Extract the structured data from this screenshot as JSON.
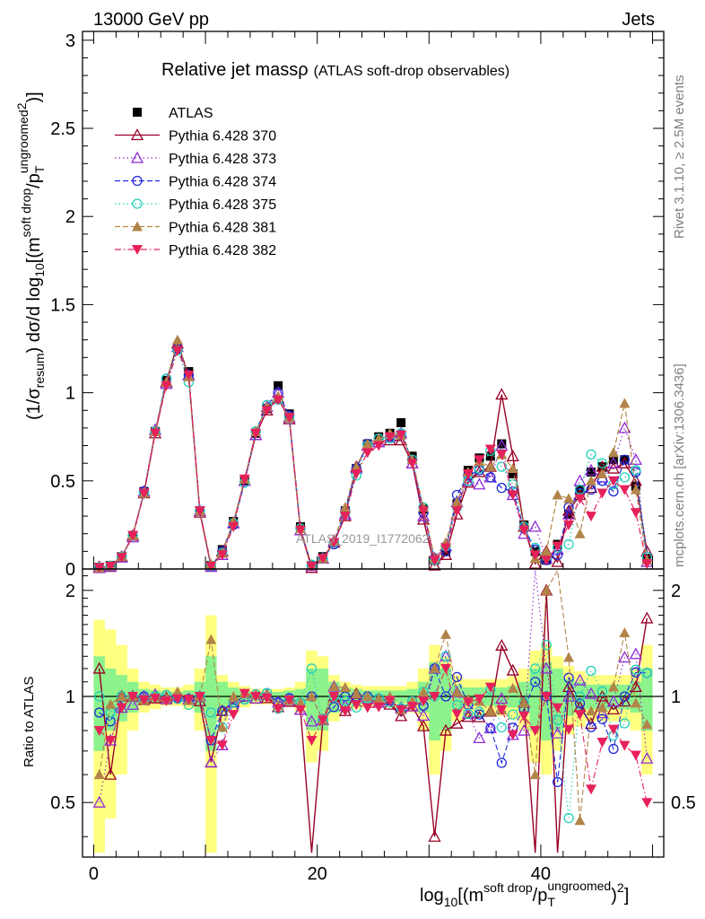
{
  "header": {
    "beam": "13000 GeV pp",
    "process": "Jets",
    "rivet": "Rivet 3.1.10, ≥ 2.5M events",
    "source": "mcplots.cern.ch [arXiv:1306.3436]",
    "watermark": "ATLAS_2019_I1772062"
  },
  "chart_data": [
    {
      "type": "line",
      "panel": "main",
      "title": "Relative jet massρ",
      "subtitle": "(ATLAS soft-drop observables)",
      "ylabel": "(1/σresum) dσ/d log10[(m soft drop / pT ungroomed)2]",
      "xlabel": "log10[(m soft drop / pT ungroomed)2]",
      "xlim": [
        -1,
        51
      ],
      "ylim": [
        0,
        3.05
      ],
      "xticks": [
        "0",
        "20",
        "40"
      ],
      "yticks": [
        "0",
        "0.5",
        "1",
        "1.5",
        "2",
        "2.5",
        "3"
      ],
      "x": [
        0.5,
        1.5,
        2.5,
        3.5,
        4.5,
        5.5,
        6.5,
        7.5,
        8.5,
        9.5,
        10.5,
        11.5,
        12.5,
        13.5,
        14.5,
        15.5,
        16.5,
        17.5,
        18.5,
        19.5,
        20.5,
        21.5,
        22.5,
        23.5,
        24.5,
        25.5,
        26.5,
        27.5,
        28.5,
        29.5,
        30.5,
        31.5,
        32.5,
        33.5,
        34.5,
        35.5,
        36.5,
        37.5,
        38.5,
        39.5,
        40.5,
        41.5,
        42.5,
        43.5,
        44.5,
        45.5,
        46.5,
        47.5,
        48.5,
        49.5
      ],
      "series": [
        {
          "name": "ATLAS",
          "color": "#000000",
          "marker": "filled-square",
          "line": "none",
          "values": [
            0.01,
            0.02,
            0.07,
            0.19,
            0.44,
            0.78,
            1.07,
            1.26,
            1.12,
            0.33,
            0.02,
            0.11,
            0.27,
            0.5,
            0.77,
            0.91,
            1.04,
            0.88,
            0.24,
            0.02,
            0.07,
            0.15,
            0.33,
            0.57,
            0.71,
            0.75,
            0.77,
            0.83,
            0.64,
            0.34,
            0.05,
            0.1,
            0.37,
            0.56,
            0.63,
            0.64,
            0.71,
            0.54,
            0.25,
            0.1,
            0.05,
            0.14,
            0.31,
            0.45,
            0.55,
            0.58,
            0.62,
            0.62,
            0.47,
            0.06
          ]
        },
        {
          "name": "Pythia 6.428 370",
          "color": "#990026",
          "marker": "open-triangle-up",
          "line": "solid",
          "values": [
            0.012,
            0.012,
            0.07,
            0.19,
            0.43,
            0.77,
            1.06,
            1.28,
            1.1,
            0.32,
            0.013,
            0.1,
            0.26,
            0.5,
            0.76,
            0.9,
            0.97,
            0.85,
            0.22,
            0.006,
            0.06,
            0.15,
            0.3,
            0.58,
            0.7,
            0.72,
            0.73,
            0.73,
            0.6,
            0.28,
            0.02,
            0.08,
            0.31,
            0.49,
            0.55,
            0.58,
            0.99,
            0.64,
            0.24,
            0.03,
            0.1,
            0.04,
            0.33,
            0.42,
            0.46,
            0.58,
            0.57,
            0.6,
            0.5,
            0.1
          ]
        },
        {
          "name": "Pythia 6.428 373",
          "color": "#8e2bd6",
          "marker": "open-triangle-up",
          "line": "dotted",
          "values": [
            0.005,
            0.015,
            0.065,
            0.18,
            0.44,
            0.79,
            1.05,
            1.26,
            1.1,
            0.33,
            0.013,
            0.08,
            0.26,
            0.5,
            0.76,
            0.92,
            1.0,
            0.86,
            0.22,
            0.017,
            0.06,
            0.16,
            0.31,
            0.57,
            0.7,
            0.72,
            0.75,
            0.77,
            0.6,
            0.3,
            0.06,
            0.13,
            0.38,
            0.5,
            0.48,
            0.52,
            0.7,
            0.42,
            0.2,
            0.24,
            0.06,
            0.11,
            0.31,
            0.5,
            0.56,
            0.52,
            0.6,
            0.8,
            0.62,
            0.04
          ]
        },
        {
          "name": "Pythia 6.428 374",
          "color": "#1f28d8",
          "marker": "open-circle",
          "line": "dashed",
          "values": [
            0.009,
            0.017,
            0.07,
            0.19,
            0.44,
            0.78,
            1.08,
            1.25,
            1.1,
            0.33,
            0.015,
            0.1,
            0.25,
            0.49,
            0.78,
            0.93,
            1.0,
            0.87,
            0.23,
            0.02,
            0.06,
            0.14,
            0.33,
            0.57,
            0.71,
            0.74,
            0.75,
            0.76,
            0.62,
            0.32,
            0.06,
            0.1,
            0.42,
            0.53,
            0.56,
            0.52,
            0.46,
            0.44,
            0.23,
            0.11,
            0.05,
            0.08,
            0.35,
            0.43,
            0.45,
            0.5,
            0.44,
            0.62,
            0.55,
            0.07
          ]
        },
        {
          "name": "Pythia 6.428 375",
          "color": "#23d0b8",
          "marker": "open-circle",
          "line": "dotted",
          "values": [
            0.01,
            0.018,
            0.07,
            0.19,
            0.43,
            0.78,
            1.08,
            1.24,
            1.06,
            0.33,
            0.018,
            0.09,
            0.26,
            0.49,
            0.78,
            0.93,
            0.96,
            0.86,
            0.23,
            0.024,
            0.06,
            0.15,
            0.32,
            0.53,
            0.7,
            0.74,
            0.74,
            0.77,
            0.62,
            0.35,
            0.05,
            0.13,
            0.35,
            0.5,
            0.57,
            0.67,
            0.58,
            0.48,
            0.24,
            0.12,
            0.07,
            0.12,
            0.14,
            0.45,
            0.65,
            0.6,
            0.48,
            0.52,
            0.56,
            0.07
          ]
        },
        {
          "name": "Pythia 6.428 381",
          "color": "#b3844a",
          "marker": "filled-triangle-up",
          "line": "dashed",
          "values": [
            0.006,
            0.019,
            0.07,
            0.19,
            0.43,
            0.78,
            1.06,
            1.3,
            1.09,
            0.33,
            0.029,
            0.09,
            0.27,
            0.51,
            0.78,
            0.92,
            0.98,
            0.86,
            0.23,
            0.02,
            0.06,
            0.16,
            0.35,
            0.58,
            0.71,
            0.74,
            0.77,
            0.76,
            0.62,
            0.35,
            0.06,
            0.15,
            0.38,
            0.55,
            0.61,
            0.58,
            0.65,
            0.57,
            0.24,
            0.06,
            0.1,
            0.42,
            0.4,
            0.2,
            0.5,
            0.54,
            0.66,
            0.94,
            0.45,
            0.05
          ]
        },
        {
          "name": "Pythia 6.428 382",
          "color": "#e6215a",
          "marker": "filled-triangle-down",
          "line": "dashdot",
          "values": [
            0.008,
            0.015,
            0.065,
            0.19,
            0.43,
            0.77,
            1.04,
            1.24,
            1.1,
            0.33,
            0.015,
            0.08,
            0.24,
            0.51,
            0.77,
            0.9,
            0.96,
            0.86,
            0.22,
            0.015,
            0.06,
            0.15,
            0.3,
            0.54,
            0.66,
            0.7,
            0.75,
            0.76,
            0.6,
            0.33,
            0.05,
            0.12,
            0.33,
            0.54,
            0.62,
            0.68,
            0.65,
            0.42,
            0.22,
            0.08,
            0.05,
            0.13,
            0.25,
            0.4,
            0.3,
            0.43,
            0.5,
            0.45,
            0.32,
            0.03
          ]
        }
      ]
    },
    {
      "type": "line",
      "panel": "ratio",
      "ylabel": "Ratio to ATLAS",
      "xlim": [
        -1,
        51
      ],
      "ylim": [
        0.35,
        2.3
      ],
      "yticks": [
        "0.5",
        "1",
        "2"
      ],
      "reference": 1,
      "band_inner_halfwidth": [
        0.3,
        0.2,
        0.15,
        0.1,
        0.05,
        0.04,
        0.03,
        0.03,
        0.04,
        0.1,
        0.3,
        0.1,
        0.06,
        0.04,
        0.03,
        0.03,
        0.03,
        0.04,
        0.05,
        0.2,
        0.2,
        0.1,
        0.06,
        0.05,
        0.04,
        0.04,
        0.04,
        0.04,
        0.05,
        0.1,
        0.25,
        0.2,
        0.08,
        0.06,
        0.06,
        0.06,
        0.06,
        0.07,
        0.1,
        0.2,
        0.25,
        0.2,
        0.12,
        0.1,
        0.08,
        0.08,
        0.08,
        0.08,
        0.1,
        0.2
      ],
      "band_outer_halfwidth": [
        0.65,
        0.55,
        0.4,
        0.2,
        0.1,
        0.08,
        0.06,
        0.06,
        0.08,
        0.2,
        0.7,
        0.15,
        0.1,
        0.07,
        0.05,
        0.05,
        0.05,
        0.06,
        0.1,
        0.35,
        0.3,
        0.15,
        0.1,
        0.08,
        0.07,
        0.07,
        0.07,
        0.07,
        0.1,
        0.2,
        0.4,
        0.3,
        0.15,
        0.12,
        0.12,
        0.12,
        0.12,
        0.14,
        0.2,
        0.35,
        0.4,
        0.3,
        0.22,
        0.18,
        0.15,
        0.15,
        0.15,
        0.15,
        0.2,
        0.4
      ]
    }
  ]
}
